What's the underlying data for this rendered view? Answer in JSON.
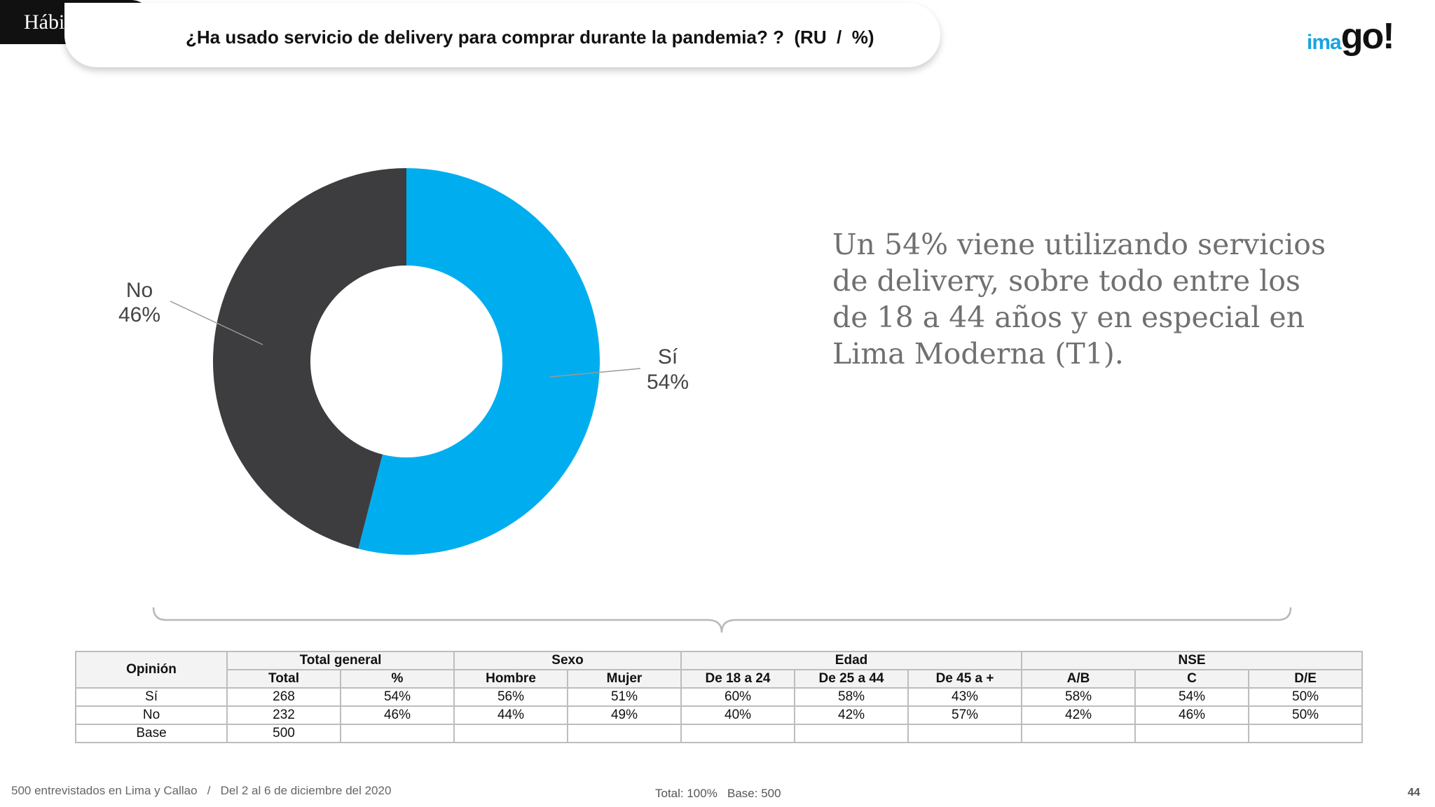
{
  "section_tag": "Hábitos",
  "question": "¿Ha usado servicio de delivery para comprar durante la pandemia? ?  (RU  /  %)",
  "logo": {
    "part1": "ima",
    "part2": "go!"
  },
  "colors": {
    "si": "#00aeef",
    "no": "#3d3d3f",
    "tag_bg": "#111111"
  },
  "chart_data": {
    "type": "pie",
    "variant": "donut",
    "categories": [
      "Sí",
      "No"
    ],
    "values": [
      54,
      46
    ],
    "labels": [
      {
        "name": "Sí",
        "value": "54%"
      },
      {
        "name": "No",
        "value": "46%"
      }
    ]
  },
  "insight": "Un 54% viene utilizando servicios de delivery, sobre todo entre los de 18 a 44 años y en especial en Lima Moderna (T1).",
  "table": {
    "opinion_header": "Opinión",
    "group_headers": [
      "Total general",
      "Sexo",
      "Edad",
      "NSE"
    ],
    "sub_headers": [
      "Total",
      "%",
      "Hombre",
      "Mujer",
      "De 18 a 24",
      "De 25 a 44",
      "De 45 a +",
      "A/B",
      "C",
      "D/E"
    ],
    "rows": [
      {
        "label": "Sí",
        "cells": [
          "268",
          "54%",
          "56%",
          "51%",
          "60%",
          "58%",
          "43%",
          "58%",
          "54%",
          "50%"
        ]
      },
      {
        "label": "No",
        "cells": [
          "232",
          "46%",
          "44%",
          "49%",
          "40%",
          "42%",
          "57%",
          "42%",
          "46%",
          "50%"
        ]
      },
      {
        "label": "Base",
        "cells": [
          "500",
          "",
          "",
          "",
          "",
          "",
          "",
          "",
          "",
          ""
        ]
      }
    ]
  },
  "footer": {
    "left": "500 entrevistados en Lima y Callao   /   Del 2 al 6 de diciembre del 2020",
    "middle": "Total: 100%   Base: 500",
    "page": "44"
  }
}
